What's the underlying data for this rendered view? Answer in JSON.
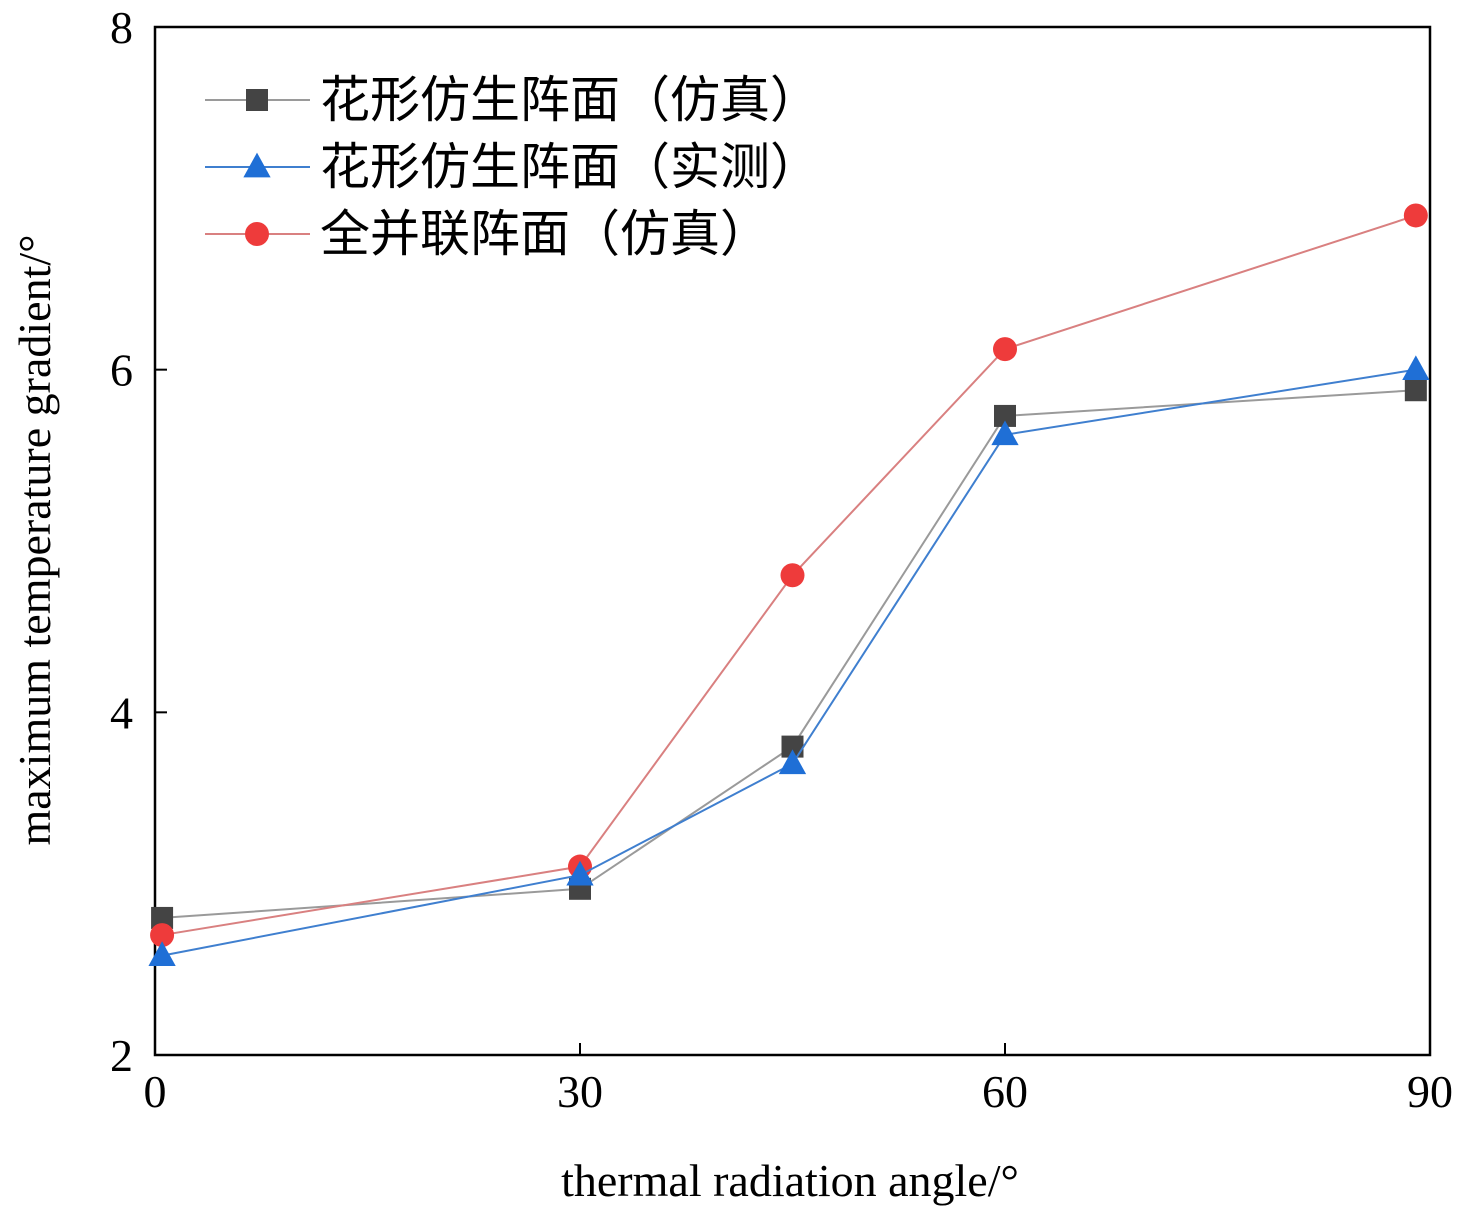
{
  "chart_data": {
    "type": "line",
    "title": "",
    "xlabel": "thermal radiation angle/°",
    "ylabel": "maximum temperature gradient/°",
    "xlim": [
      0,
      90
    ],
    "ylim": [
      2,
      8
    ],
    "xticks": [
      0,
      30,
      60,
      90
    ],
    "yticks": [
      2,
      4,
      6,
      8
    ],
    "grid": false,
    "legend_position": "top-left",
    "series": [
      {
        "name": "花形仿生阵面（仿真）",
        "marker": "square",
        "color": "#444444",
        "line_color": "#9a9a9a",
        "x": [
          0.5,
          30,
          45,
          60,
          89
        ],
        "y": [
          2.8,
          2.97,
          3.8,
          5.73,
          5.88
        ]
      },
      {
        "name": "花形仿生阵面（实测）",
        "marker": "triangle",
        "color": "#1f6fd6",
        "line_color": "#3f7fcf",
        "x": [
          0.5,
          30,
          45,
          60,
          89
        ],
        "y": [
          2.58,
          3.05,
          3.7,
          5.62,
          6.0
        ]
      },
      {
        "name": "全并联阵面（仿真）",
        "marker": "circle",
        "color": "#ee3b3b",
        "line_color": "#d98080",
        "x": [
          0.5,
          30,
          45,
          60,
          89
        ],
        "y": [
          2.7,
          3.1,
          4.8,
          6.12,
          6.9
        ]
      }
    ]
  }
}
